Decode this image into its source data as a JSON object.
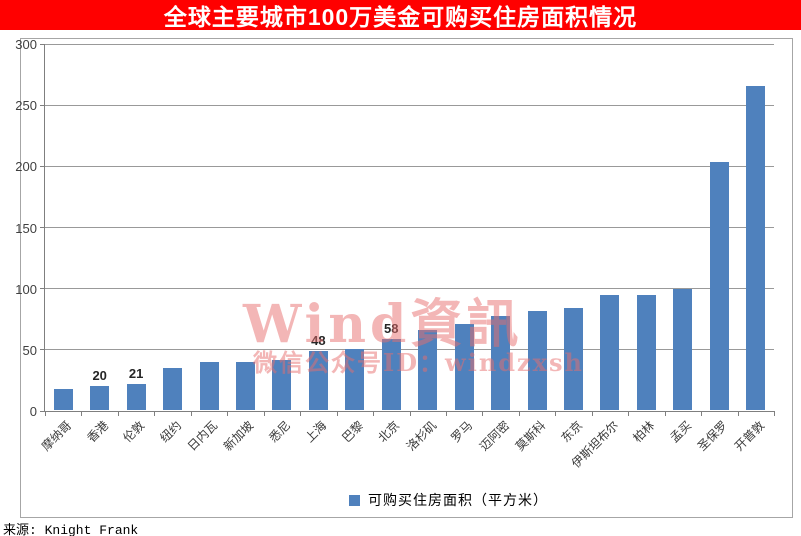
{
  "title": {
    "text": "全球主要城市100万美金可购买住房面积情况",
    "bg_color": "#FF0000",
    "fg_color": "#FFFFFF"
  },
  "chart_data": {
    "type": "bar",
    "title": "全球主要城市100万美金可购买住房面积情况",
    "categories": [
      "摩纳哥",
      "香港",
      "伦敦",
      "纽约",
      "日内瓦",
      "新加坡",
      "悉尼",
      "上海",
      "巴黎",
      "北京",
      "洛杉矶",
      "罗马",
      "迈阿密",
      "莫斯科",
      "东京",
      "伊斯坦布尔",
      "柏林",
      "孟买",
      "圣保罗",
      "开普敦"
    ],
    "values": [
      17,
      20,
      21,
      34,
      39,
      39,
      41,
      48,
      50,
      58,
      65,
      70,
      77,
      81,
      83,
      94,
      94,
      99,
      203,
      265
    ],
    "labeled_point_indices": [
      1,
      2,
      7,
      9
    ],
    "xlabel": "",
    "ylabel": "",
    "ylim": [
      0,
      300
    ],
    "yticks": [
      0,
      50,
      100,
      150,
      200,
      250,
      300
    ],
    "grid": true,
    "legend": "可购买住房面积（平方米）",
    "legend_position": "bottom",
    "bar_color": "#4F81BD"
  },
  "watermark": {
    "line1": "Wind資訊",
    "line2": "微信公众号ID：windzxsh",
    "color_rgba": "rgba(231,110,110,0.5)"
  },
  "source": {
    "text": "来源: Knight Frank"
  }
}
